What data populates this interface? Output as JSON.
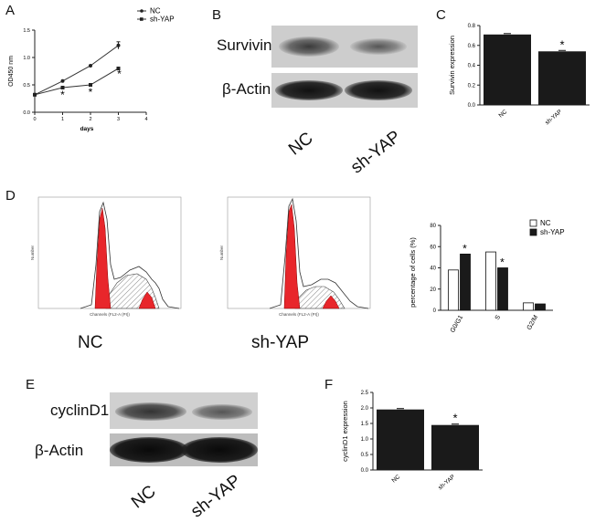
{
  "panels": {
    "A": "A",
    "B": "B",
    "C": "C",
    "D": "D",
    "E": "E",
    "F": "F"
  },
  "blot_B": {
    "rows": [
      "Survivin",
      "β-Actin"
    ],
    "lanes": [
      "NC",
      "sh-YAP"
    ]
  },
  "blot_E": {
    "rows": [
      "cyclinD1",
      "β-Actin"
    ],
    "lanes": [
      "NC",
      "sh-YAP"
    ]
  },
  "histograms": {
    "left_label": "NC",
    "right_label": "sh-YAP",
    "xlabel": "Channels (FL2-A (PI))",
    "ylabel": "Number"
  },
  "colors": {
    "bar_dark": "#1a1a1a",
    "hist_fill": "#e8262b",
    "blot_bg": "#c8c8c8"
  },
  "chart_data": [
    {
      "id": "A",
      "type": "line",
      "xlabel": "days",
      "ylabel": "OD450 nm",
      "xlim": [
        0,
        4
      ],
      "ylim": [
        0,
        1.5
      ],
      "xticks": [
        "0",
        "1",
        "2",
        "3",
        "4"
      ],
      "yticks": [
        "0.0",
        "0.5",
        "1.0",
        "1.5"
      ],
      "series": [
        {
          "name": "NC",
          "x": [
            0,
            1,
            2,
            3
          ],
          "y": [
            0.32,
            0.57,
            0.85,
            1.22
          ]
        },
        {
          "name": "sh-YAP",
          "x": [
            0,
            1,
            2,
            3
          ],
          "y": [
            0.32,
            0.45,
            0.5,
            0.8
          ]
        }
      ],
      "annotations": [
        "*",
        "*",
        "*"
      ],
      "legend_position": "top-right"
    },
    {
      "id": "C",
      "type": "bar",
      "categories": [
        "NC",
        "sh-YAP"
      ],
      "values": [
        0.71,
        0.54
      ],
      "ylabel": "Survivin expression",
      "ylim": [
        0,
        0.8
      ],
      "yticks": [
        "0.0",
        "0.2",
        "0.4",
        "0.6",
        "0.8"
      ],
      "annotations": [
        "",
        "*"
      ]
    },
    {
      "id": "D",
      "type": "bar",
      "categories": [
        "G0/G1",
        "S",
        "G2/M"
      ],
      "series": [
        {
          "name": "NC",
          "values": [
            38,
            55,
            7
          ]
        },
        {
          "name": "sh-YAP",
          "values": [
            53,
            40,
            6
          ]
        }
      ],
      "ylabel": "percentage of cells (%)",
      "ylim": [
        0,
        80
      ],
      "yticks": [
        "0",
        "20",
        "40",
        "60",
        "80"
      ],
      "annotations": [
        "*",
        "*",
        ""
      ],
      "legend_position": "top-right"
    },
    {
      "id": "F",
      "type": "bar",
      "categories": [
        "NC",
        "sh-YAP"
      ],
      "values": [
        1.95,
        1.45
      ],
      "ylabel": "cyclinD1 expression",
      "ylim": [
        0,
        2.5
      ],
      "yticks": [
        "0.0",
        "0.5",
        "1.0",
        "1.5",
        "2.0",
        "2.5"
      ],
      "annotations": [
        "",
        "*"
      ]
    }
  ]
}
